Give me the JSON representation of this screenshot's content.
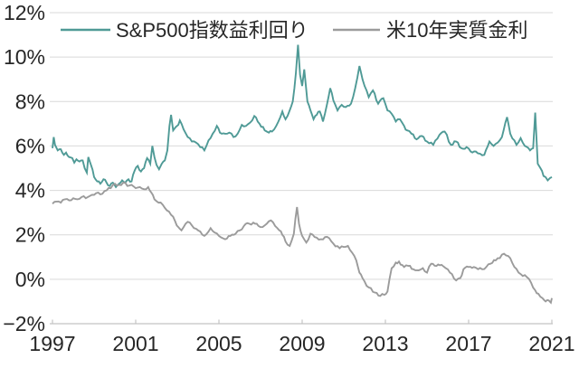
{
  "colors": {
    "background": "#ffffff",
    "grid": "#d9d9d9",
    "axis": "#c4c4c4",
    "text": "#262626",
    "sp500": "#4f9a96",
    "real_rate": "#9b9b9b"
  },
  "legend": [
    {
      "label": "S&P500指数益利回り",
      "color": "#4f9a96"
    },
    {
      "label": "米10年実質金利",
      "color": "#9b9b9b"
    }
  ],
  "chart_data": {
    "type": "line",
    "title": "",
    "xlabel": "",
    "ylabel": "",
    "xlim": [
      1997,
      2021
    ],
    "ylim": [
      -2,
      12
    ],
    "grid": true,
    "legend_position": "top-inside",
    "x_tick_values": [
      1997,
      2001,
      2005,
      2009,
      2013,
      2017,
      2021
    ],
    "x_tick_labels": [
      "1997",
      "2001",
      "2005",
      "2009",
      "2013",
      "2017",
      "2021"
    ],
    "y_tick_values": [
      12,
      10,
      8,
      6,
      4,
      2,
      0,
      -2
    ],
    "y_tick_labels": [
      "12%",
      "10%",
      "8%",
      "6%",
      "4%",
      "2%",
      "0%",
      "−2%"
    ],
    "grid_values": [
      12,
      10,
      8,
      6,
      4,
      2,
      0
    ],
    "unit": "%",
    "series": [
      {
        "name": "S&P500指数益利回り",
        "color": "#4f9a96",
        "points": [
          [
            1997.0,
            5.9
          ],
          [
            1997.06,
            6.4
          ],
          [
            1997.12,
            6.05
          ],
          [
            1997.25,
            5.8
          ],
          [
            1997.4,
            5.85
          ],
          [
            1997.55,
            5.6
          ],
          [
            1997.65,
            5.7
          ],
          [
            1997.8,
            5.5
          ],
          [
            1997.95,
            5.45
          ],
          [
            1998.05,
            5.25
          ],
          [
            1998.15,
            5.4
          ],
          [
            1998.3,
            5.3
          ],
          [
            1998.45,
            5.35
          ],
          [
            1998.55,
            5.0
          ],
          [
            1998.65,
            4.8
          ],
          [
            1998.72,
            5.5
          ],
          [
            1998.85,
            5.15
          ],
          [
            1999.0,
            4.6
          ],
          [
            1999.15,
            4.4
          ],
          [
            1999.3,
            4.3
          ],
          [
            1999.45,
            4.5
          ],
          [
            1999.6,
            4.35
          ],
          [
            1999.75,
            4.2
          ],
          [
            1999.9,
            4.35
          ],
          [
            2000.05,
            4.15
          ],
          [
            2000.2,
            4.3
          ],
          [
            2000.35,
            4.45
          ],
          [
            2000.5,
            4.35
          ],
          [
            2000.65,
            4.5
          ],
          [
            2000.8,
            4.4
          ],
          [
            2000.95,
            4.9
          ],
          [
            2001.1,
            5.1
          ],
          [
            2001.25,
            4.85
          ],
          [
            2001.4,
            5.0
          ],
          [
            2001.55,
            5.45
          ],
          [
            2001.7,
            5.2
          ],
          [
            2001.8,
            6.0
          ],
          [
            2001.9,
            5.5
          ],
          [
            2002.0,
            5.15
          ],
          [
            2002.12,
            4.95
          ],
          [
            2002.25,
            5.2
          ],
          [
            2002.4,
            5.35
          ],
          [
            2002.52,
            5.8
          ],
          [
            2002.62,
            6.9
          ],
          [
            2002.7,
            7.4
          ],
          [
            2002.8,
            6.7
          ],
          [
            2002.92,
            6.85
          ],
          [
            2003.05,
            6.95
          ],
          [
            2003.12,
            7.15
          ],
          [
            2003.3,
            6.75
          ],
          [
            2003.5,
            6.4
          ],
          [
            2003.7,
            6.2
          ],
          [
            2003.9,
            6.15
          ],
          [
            2004.1,
            5.95
          ],
          [
            2004.3,
            5.8
          ],
          [
            2004.5,
            6.25
          ],
          [
            2004.7,
            6.55
          ],
          [
            2004.9,
            6.9
          ],
          [
            2005.05,
            6.6
          ],
          [
            2005.3,
            6.55
          ],
          [
            2005.5,
            6.6
          ],
          [
            2005.7,
            6.4
          ],
          [
            2005.9,
            6.55
          ],
          [
            2006.1,
            6.95
          ],
          [
            2006.3,
            6.9
          ],
          [
            2006.5,
            7.05
          ],
          [
            2006.7,
            7.35
          ],
          [
            2006.95,
            7.0
          ],
          [
            2007.2,
            6.7
          ],
          [
            2007.4,
            6.6
          ],
          [
            2007.55,
            6.65
          ],
          [
            2007.75,
            6.9
          ],
          [
            2007.95,
            7.3
          ],
          [
            2008.05,
            7.55
          ],
          [
            2008.2,
            7.2
          ],
          [
            2008.4,
            7.6
          ],
          [
            2008.55,
            8.0
          ],
          [
            2008.7,
            9.3
          ],
          [
            2008.8,
            10.55
          ],
          [
            2008.9,
            9.2
          ],
          [
            2009.0,
            8.7
          ],
          [
            2009.1,
            9.45
          ],
          [
            2009.25,
            8.0
          ],
          [
            2009.4,
            7.6
          ],
          [
            2009.55,
            7.2
          ],
          [
            2009.7,
            7.4
          ],
          [
            2009.85,
            7.55
          ],
          [
            2010.0,
            7.1
          ],
          [
            2010.2,
            7.9
          ],
          [
            2010.35,
            8.6
          ],
          [
            2010.5,
            8.05
          ],
          [
            2010.7,
            7.6
          ],
          [
            2010.9,
            7.85
          ],
          [
            2011.1,
            7.75
          ],
          [
            2011.35,
            7.9
          ],
          [
            2011.55,
            8.6
          ],
          [
            2011.75,
            9.6
          ],
          [
            2011.9,
            9.0
          ],
          [
            2012.0,
            8.7
          ],
          [
            2012.2,
            8.2
          ],
          [
            2012.4,
            8.5
          ],
          [
            2012.65,
            7.9
          ],
          [
            2012.9,
            8.15
          ],
          [
            2013.1,
            7.6
          ],
          [
            2013.3,
            7.45
          ],
          [
            2013.5,
            7.1
          ],
          [
            2013.7,
            7.2
          ],
          [
            2013.9,
            6.9
          ],
          [
            2014.05,
            6.7
          ],
          [
            2014.25,
            6.55
          ],
          [
            2014.5,
            6.3
          ],
          [
            2014.75,
            6.45
          ],
          [
            2015.0,
            6.2
          ],
          [
            2015.3,
            6.05
          ],
          [
            2015.6,
            6.5
          ],
          [
            2015.85,
            6.65
          ],
          [
            2016.15,
            6.05
          ],
          [
            2016.4,
            6.2
          ],
          [
            2016.65,
            5.9
          ],
          [
            2016.9,
            5.95
          ],
          [
            2017.1,
            5.75
          ],
          [
            2017.35,
            5.75
          ],
          [
            2017.55,
            5.65
          ],
          [
            2017.75,
            5.6
          ],
          [
            2018.0,
            6.2
          ],
          [
            2018.2,
            6.0
          ],
          [
            2018.4,
            6.15
          ],
          [
            2018.6,
            6.4
          ],
          [
            2018.85,
            7.3
          ],
          [
            2019.0,
            6.55
          ],
          [
            2019.3,
            6.05
          ],
          [
            2019.5,
            6.35
          ],
          [
            2019.7,
            6.0
          ],
          [
            2019.95,
            5.8
          ],
          [
            2020.1,
            5.9
          ],
          [
            2020.2,
            7.5
          ],
          [
            2020.32,
            5.2
          ],
          [
            2020.45,
            5.0
          ],
          [
            2020.6,
            4.65
          ],
          [
            2020.8,
            4.45
          ],
          [
            2020.9,
            4.55
          ],
          [
            2021.0,
            4.6
          ]
        ]
      },
      {
        "name": "米10年実質金利",
        "color": "#9b9b9b",
        "points": [
          [
            1997.0,
            3.4
          ],
          [
            1997.2,
            3.5
          ],
          [
            1997.4,
            3.45
          ],
          [
            1997.6,
            3.6
          ],
          [
            1997.8,
            3.55
          ],
          [
            1998.0,
            3.65
          ],
          [
            1998.2,
            3.6
          ],
          [
            1998.4,
            3.7
          ],
          [
            1998.6,
            3.65
          ],
          [
            1998.8,
            3.75
          ],
          [
            1999.0,
            3.8
          ],
          [
            1999.2,
            3.9
          ],
          [
            1999.4,
            3.85
          ],
          [
            1999.6,
            4.0
          ],
          [
            1999.8,
            4.1
          ],
          [
            2000.0,
            4.3
          ],
          [
            2000.2,
            4.25
          ],
          [
            2000.4,
            4.35
          ],
          [
            2000.6,
            4.2
          ],
          [
            2000.8,
            4.25
          ],
          [
            2001.0,
            4.1
          ],
          [
            2001.2,
            4.15
          ],
          [
            2001.4,
            4.05
          ],
          [
            2001.6,
            4.15
          ],
          [
            2001.75,
            3.9
          ],
          [
            2001.9,
            3.6
          ],
          [
            2002.1,
            3.45
          ],
          [
            2002.3,
            3.35
          ],
          [
            2002.5,
            3.1
          ],
          [
            2002.7,
            2.9
          ],
          [
            2002.9,
            2.6
          ],
          [
            2003.05,
            2.35
          ],
          [
            2003.2,
            2.2
          ],
          [
            2003.4,
            2.5
          ],
          [
            2003.6,
            2.55
          ],
          [
            2003.8,
            2.3
          ],
          [
            2004.0,
            2.2
          ],
          [
            2004.3,
            1.95
          ],
          [
            2004.6,
            2.3
          ],
          [
            2004.8,
            2.1
          ],
          [
            2005.0,
            1.95
          ],
          [
            2005.3,
            1.8
          ],
          [
            2005.55,
            1.95
          ],
          [
            2005.8,
            2.05
          ],
          [
            2006.0,
            2.2
          ],
          [
            2006.2,
            2.4
          ],
          [
            2006.45,
            2.5
          ],
          [
            2006.65,
            2.55
          ],
          [
            2006.9,
            2.4
          ],
          [
            2007.1,
            2.35
          ],
          [
            2007.3,
            2.5
          ],
          [
            2007.5,
            2.65
          ],
          [
            2007.7,
            2.4
          ],
          [
            2007.9,
            2.2
          ],
          [
            2008.05,
            2.0
          ],
          [
            2008.2,
            1.7
          ],
          [
            2008.4,
            1.5
          ],
          [
            2008.6,
            2.05
          ],
          [
            2008.75,
            3.25
          ],
          [
            2008.85,
            2.5
          ],
          [
            2009.0,
            1.95
          ],
          [
            2009.2,
            1.65
          ],
          [
            2009.4,
            2.05
          ],
          [
            2009.6,
            1.9
          ],
          [
            2009.9,
            1.8
          ],
          [
            2010.1,
            1.9
          ],
          [
            2010.3,
            1.85
          ],
          [
            2010.5,
            1.6
          ],
          [
            2010.8,
            1.4
          ],
          [
            2011.0,
            1.45
          ],
          [
            2011.2,
            1.5
          ],
          [
            2011.4,
            1.2
          ],
          [
            2011.6,
            0.85
          ],
          [
            2011.75,
            0.3
          ],
          [
            2011.9,
            0.05
          ],
          [
            2012.1,
            -0.3
          ],
          [
            2012.3,
            -0.4
          ],
          [
            2012.5,
            -0.6
          ],
          [
            2012.75,
            -0.75
          ],
          [
            2012.95,
            -0.7
          ],
          [
            2013.1,
            -0.55
          ],
          [
            2013.3,
            0.5
          ],
          [
            2013.5,
            0.75
          ],
          [
            2013.65,
            0.8
          ],
          [
            2013.9,
            0.55
          ],
          [
            2014.1,
            0.6
          ],
          [
            2014.35,
            0.45
          ],
          [
            2014.6,
            0.4
          ],
          [
            2014.8,
            0.5
          ],
          [
            2015.0,
            0.3
          ],
          [
            2015.2,
            0.7
          ],
          [
            2015.45,
            0.6
          ],
          [
            2015.7,
            0.65
          ],
          [
            2015.9,
            0.5
          ],
          [
            2016.1,
            0.3
          ],
          [
            2016.4,
            -0.05
          ],
          [
            2016.6,
            0.05
          ],
          [
            2016.75,
            0.45
          ],
          [
            2017.0,
            0.55
          ],
          [
            2017.25,
            0.55
          ],
          [
            2017.45,
            0.45
          ],
          [
            2017.65,
            0.45
          ],
          [
            2017.85,
            0.55
          ],
          [
            2018.05,
            0.7
          ],
          [
            2018.3,
            0.85
          ],
          [
            2018.5,
            0.95
          ],
          [
            2018.7,
            1.15
          ],
          [
            2018.9,
            1.05
          ],
          [
            2019.0,
            0.95
          ],
          [
            2019.2,
            0.55
          ],
          [
            2019.4,
            0.3
          ],
          [
            2019.6,
            0.15
          ],
          [
            2019.8,
            0.1
          ],
          [
            2020.0,
            -0.15
          ],
          [
            2020.2,
            -0.5
          ],
          [
            2020.35,
            -0.65
          ],
          [
            2020.55,
            -0.85
          ],
          [
            2020.7,
            -1.0
          ],
          [
            2020.85,
            -0.95
          ],
          [
            2020.95,
            -1.05
          ],
          [
            2021.0,
            -0.85
          ]
        ]
      }
    ]
  }
}
